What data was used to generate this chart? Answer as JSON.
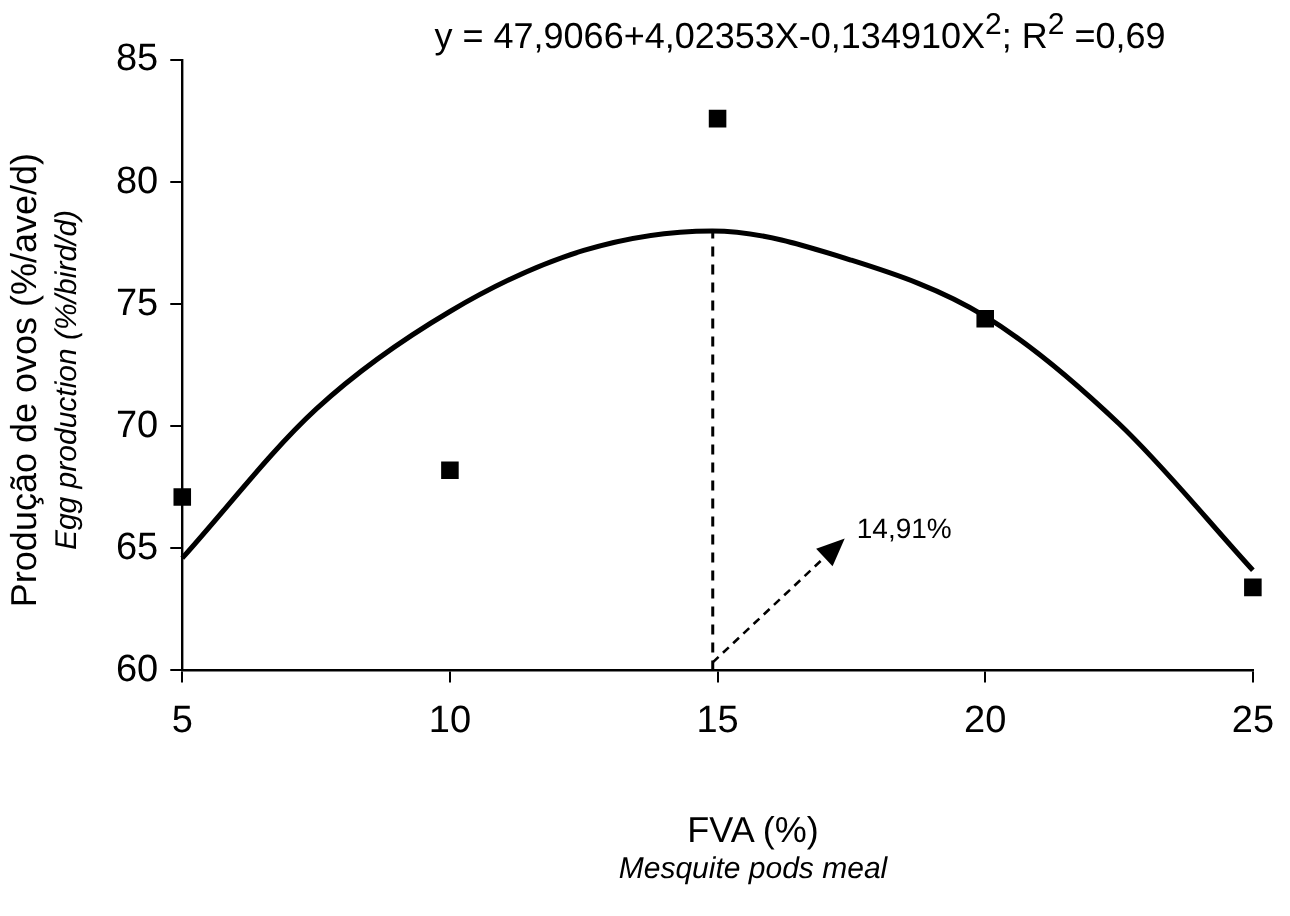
{
  "chart_data": {
    "type": "scatter",
    "title": "y = 47,9066+4,02353X-0,134910X$^{2}$; R$^{2}$ =0,69",
    "xlabel": "FVA  (%)\nMesquite pods meal",
    "ylabel": "Produção de ovos (%/ave/d)\nEgg production (%/bird/d)",
    "series": [
      {
        "color": "#000000",
        "marker": "square",
        "x": [
          5,
          10,
          15,
          20,
          25
        ],
        "values": [
          67.1,
          68.2,
          82.6,
          74.4,
          63.4
        ]
      },
      {
        "type": "line",
        "color": "#000000",
        "marker": "none",
        "x": [
          5,
          7.5,
          10,
          12.5,
          14.9,
          17.5,
          20,
          22.5,
          25
        ],
        "values": [
          64.6,
          70.7,
          74.7,
          77.2,
          78.0,
          76.8,
          74.5,
          70.1,
          64.1
        ]
      }
    ],
    "xlim": [
      5,
      25
    ],
    "xticks": [
      5,
      10,
      15,
      20,
      25
    ],
    "ylim": [
      60,
      85
    ],
    "yticks": [
      60,
      65,
      70,
      75,
      80,
      85
    ],
    "grid": false,
    "legend": false,
    "ref_lines": [
      {
        "axis": "x",
        "value": 14.91,
        "line_style": "dashed",
        "color": "#000000"
      }
    ],
    "annotations": [
      {
        "text": "14,91%",
        "x": 14.91,
        "y": 60
      }
    ]
  }
}
